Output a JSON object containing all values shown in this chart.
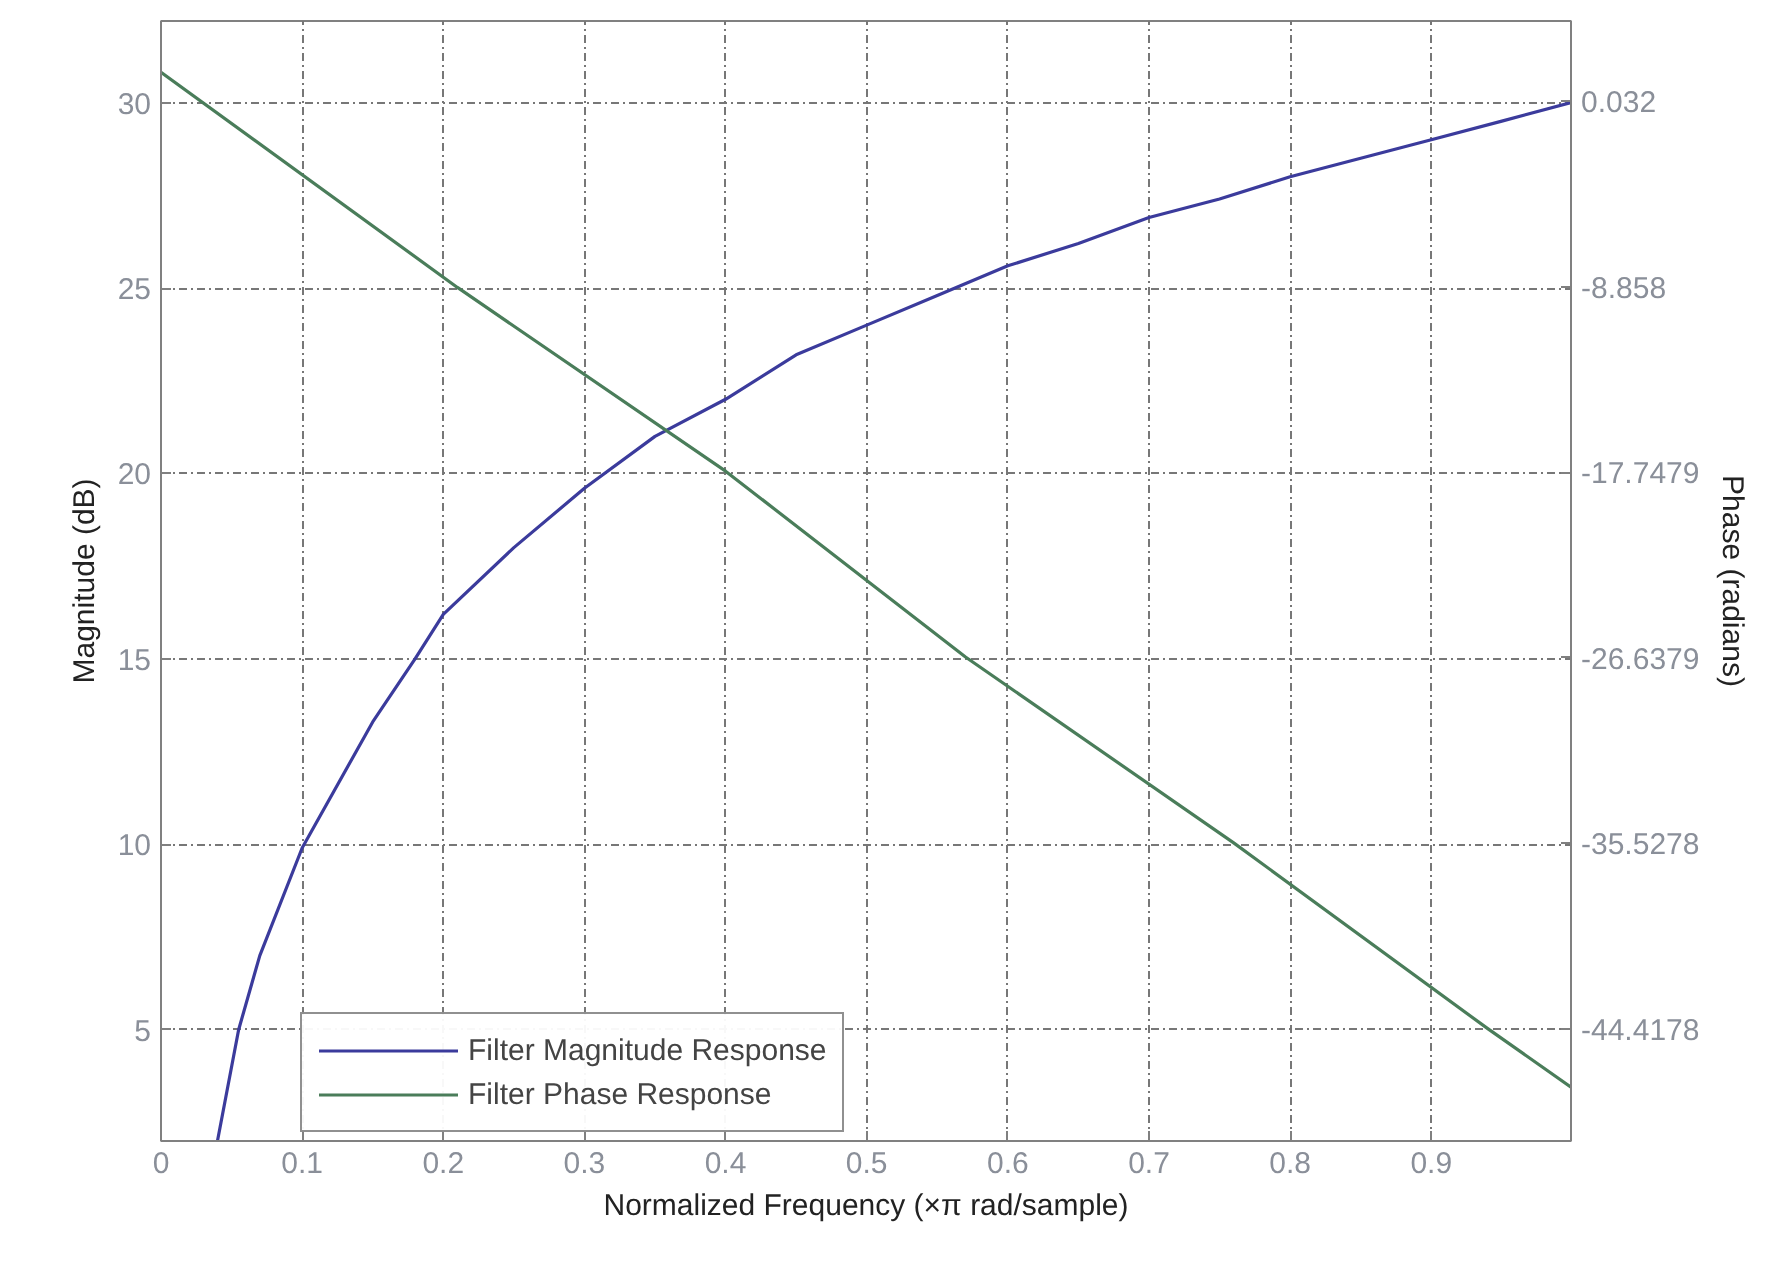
{
  "chart_data": {
    "type": "line",
    "xlabel": "Normalized Frequency (×π rad/sample)",
    "ylabel": "Magnitude (dB)",
    "y2label": "Phase (radians)",
    "xlim": [
      0,
      0.999
    ],
    "xticks": [
      0,
      0.1,
      0.2,
      0.3,
      0.4,
      0.5,
      0.6,
      0.7,
      0.8,
      0.9
    ],
    "ylim": [
      2,
      32.2
    ],
    "yticks": [
      5,
      10,
      15,
      20,
      25,
      30
    ],
    "y2lim": [
      -49.78,
      3.86
    ],
    "y2ticks": [
      -44.4178,
      -35.5278,
      -26.6379,
      -17.7479,
      -8.858,
      0.032
    ],
    "grid": true,
    "legend": "bottom left",
    "line_style": "solid",
    "series": [
      {
        "name": "Filter Magnitude Response",
        "color": "#3b3b9c",
        "x": [
          0.04,
          0.055,
          0.07,
          0.1,
          0.15,
          0.18,
          0.2,
          0.25,
          0.3,
          0.35,
          0.4,
          0.45,
          0.5,
          0.55,
          0.6,
          0.65,
          0.7,
          0.75,
          0.8,
          0.85,
          0.9,
          0.95,
          0.999
        ],
        "values": [
          2.0,
          5.0,
          7.0,
          9.9,
          13.3,
          15.0,
          16.2,
          18.0,
          19.6,
          21.0,
          22.0,
          23.2,
          24.0,
          24.8,
          25.6,
          26.2,
          26.9,
          27.4,
          28.0,
          28.5,
          29.0,
          29.5,
          30.0
        ]
      },
      {
        "name": "Filter Phase Response",
        "color": "#4a7d5a",
        "axis": "y2",
        "x": [
          0,
          0.21,
          0.4,
          0.57,
          0.76,
          0.94,
          0.999
        ],
        "values": [
          1.4,
          -8.9,
          -17.7,
          -26.6,
          -35.5,
          -44.4,
          -47.2
        ]
      }
    ]
  }
}
